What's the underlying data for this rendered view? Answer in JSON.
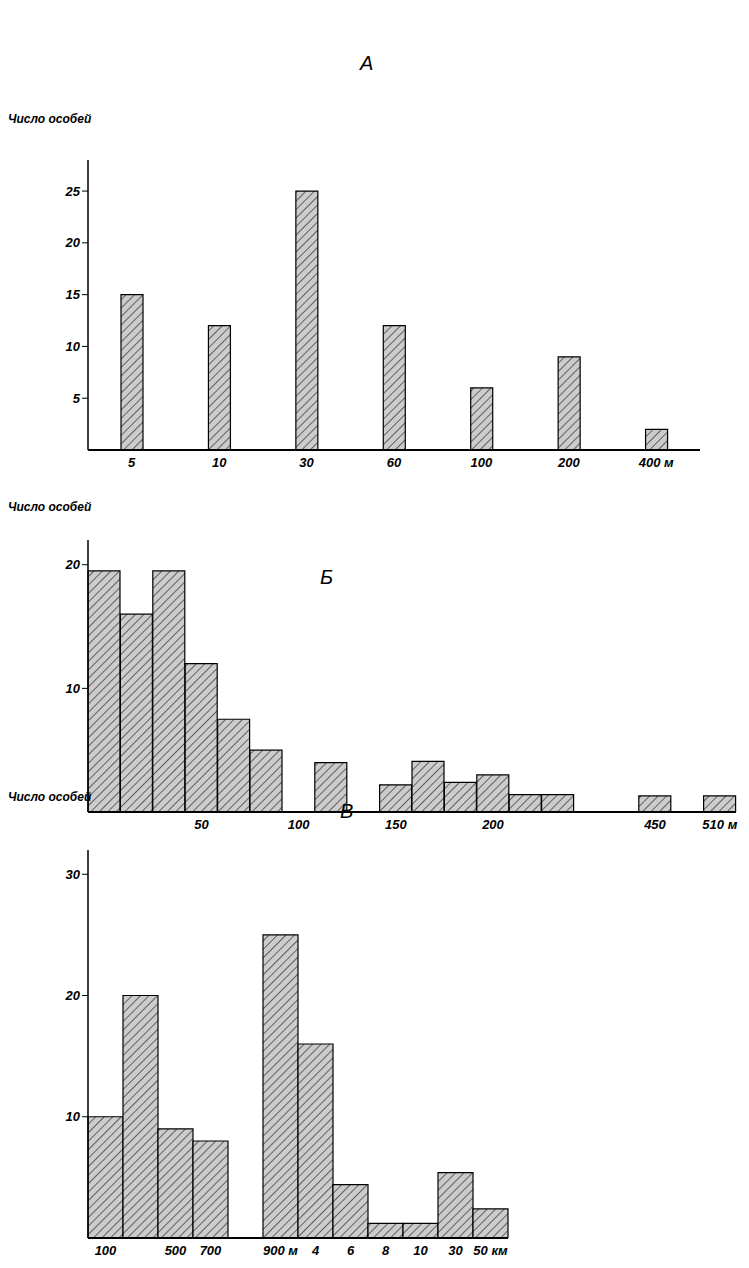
{
  "chart_data": [
    {
      "type": "bar",
      "title": "А",
      "y_label": "Число особей",
      "categories": [
        "5",
        "10",
        "30",
        "60",
        "100",
        "200",
        "400 м"
      ],
      "values": [
        15,
        12,
        25,
        12,
        6,
        9,
        2
      ],
      "color": "#cccccc",
      "ylim": [
        0,
        28
      ],
      "yticks": [
        5,
        10,
        15,
        20,
        25
      ]
    },
    {
      "type": "bar",
      "title": "Б",
      "y_label": "Число особей",
      "categories": [
        null,
        null,
        null,
        "50",
        null,
        null,
        "100",
        null,
        null,
        "150",
        null,
        null,
        "200",
        null,
        null,
        null,
        null,
        "450",
        null,
        "510 м"
      ],
      "values": [
        19.5,
        16,
        19.5,
        12,
        7.5,
        5,
        null,
        4,
        null,
        2.2,
        4.1,
        2.4,
        3,
        1.4,
        1.4,
        null,
        null,
        1.3,
        null,
        1.3
      ],
      "color": "#cccccc",
      "ylim": [
        0,
        22
      ],
      "yticks": [
        10,
        20
      ]
    },
    {
      "type": "bar",
      "title": "В",
      "y_label": "Число особей",
      "categories": [
        "100",
        null,
        "500",
        "700",
        null,
        "900 м",
        "4",
        "6",
        "8",
        "10",
        "30",
        "50 км"
      ],
      "values": [
        10,
        20,
        9,
        8,
        null,
        25,
        16,
        4.4,
        1.2,
        1.2,
        5.4,
        2.4
      ],
      "color": "#cccccc",
      "ylim": [
        0,
        32
      ],
      "yticks": [
        10,
        20,
        30
      ]
    }
  ]
}
